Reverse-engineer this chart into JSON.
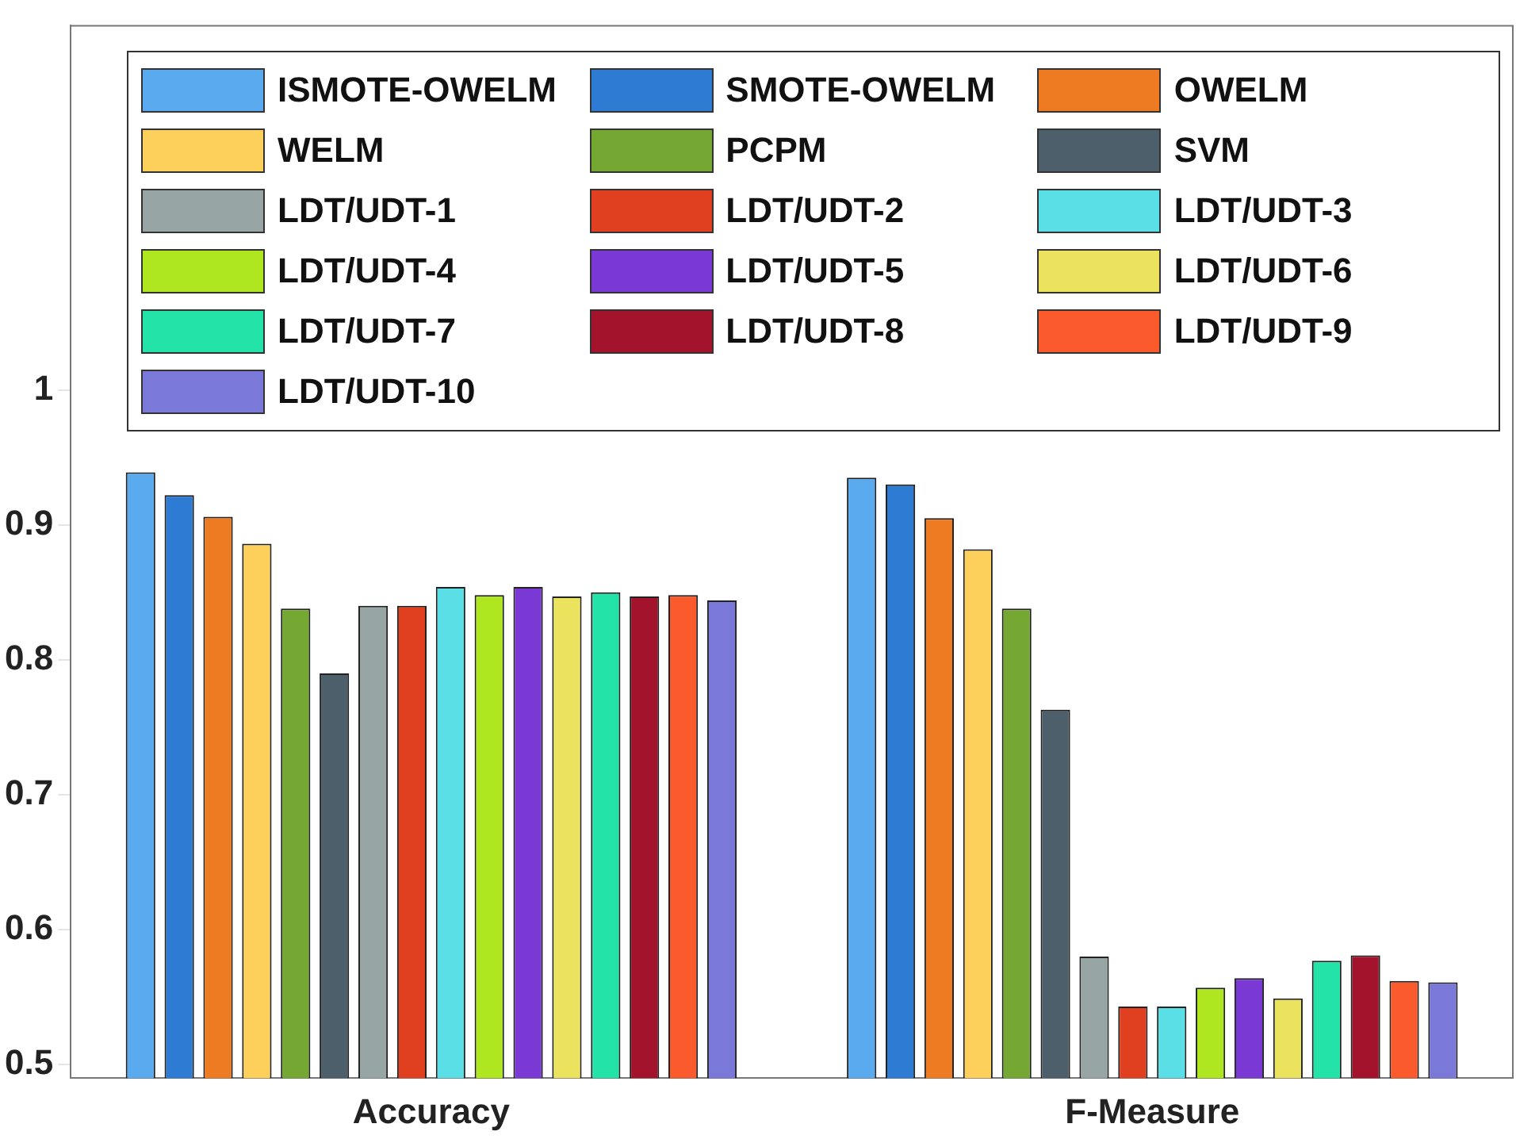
{
  "chart_data": {
    "type": "bar",
    "categories": [
      "Accuracy",
      "F-Measure"
    ],
    "ylim": [
      0.49,
      1.27
    ],
    "yticks": [
      0.5,
      0.6,
      0.7,
      0.8,
      0.9,
      1
    ],
    "grid": false,
    "legend": "top",
    "series": [
      {
        "name": "ISMOTE-OWELM",
        "color": "#5aaaf0",
        "values": [
          0.939,
          0.935
        ]
      },
      {
        "name": "SMOTE-OWELM",
        "color": "#2e7bd4",
        "values": [
          0.922,
          0.93
        ]
      },
      {
        "name": "OWELM",
        "color": "#ee7a22",
        "values": [
          0.906,
          0.905
        ]
      },
      {
        "name": "WELM",
        "color": "#fdd05c",
        "values": [
          0.886,
          0.882
        ]
      },
      {
        "name": "PCPM",
        "color": "#74a832",
        "values": [
          0.838,
          0.838
        ]
      },
      {
        "name": "SVM",
        "color": "#4d5f6a",
        "values": [
          0.79,
          0.763
        ]
      },
      {
        "name": "LDT/UDT-1",
        "color": "#97a5a5",
        "values": [
          0.84,
          0.58
        ]
      },
      {
        "name": "LDT/UDT-2",
        "color": "#e0401f",
        "values": [
          0.84,
          0.543
        ]
      },
      {
        "name": "LDT/UDT-3",
        "color": "#5adfe6",
        "values": [
          0.854,
          0.543
        ]
      },
      {
        "name": "LDT/UDT-4",
        "color": "#aee620",
        "values": [
          0.848,
          0.557
        ]
      },
      {
        "name": "LDT/UDT-5",
        "color": "#7a38d4",
        "values": [
          0.854,
          0.564
        ]
      },
      {
        "name": "LDT/UDT-6",
        "color": "#ebe35e",
        "values": [
          0.847,
          0.549
        ]
      },
      {
        "name": "LDT/UDT-7",
        "color": "#24e3a8",
        "values": [
          0.85,
          0.577
        ]
      },
      {
        "name": "LDT/UDT-8",
        "color": "#a3142c",
        "values": [
          0.847,
          0.581
        ]
      },
      {
        "name": "LDT/UDT-9",
        "color": "#fa5a2c",
        "values": [
          0.848,
          0.562
        ]
      },
      {
        "name": "LDT/UDT-10",
        "color": "#7a78d8",
        "values": [
          0.844,
          0.561
        ]
      }
    ]
  }
}
